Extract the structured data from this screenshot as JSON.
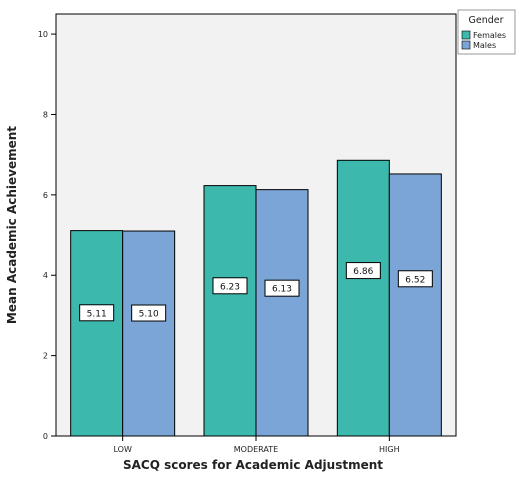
{
  "chart_data": {
    "type": "bar",
    "xlabel": "SACQ scores for Academic Adjustment",
    "ylabel": "Mean Academic Achievement",
    "categories": [
      "LOW",
      "MODERATE",
      "HIGH"
    ],
    "ylim": [
      0,
      10.5
    ],
    "yticks": [
      0,
      2,
      4,
      6,
      8,
      10
    ],
    "legend_title": "Gender",
    "legend_position": "top-right",
    "grid": false,
    "series": [
      {
        "name": "Females",
        "color": "#3cb8ad",
        "values": [
          5.11,
          6.23,
          6.86
        ],
        "labels": [
          "5.11",
          "6.23",
          "6.86"
        ]
      },
      {
        "name": "Males",
        "color": "#7aa5d6",
        "values": [
          5.1,
          6.13,
          6.52
        ],
        "labels": [
          "5.10",
          "6.13",
          "6.52"
        ]
      }
    ]
  }
}
